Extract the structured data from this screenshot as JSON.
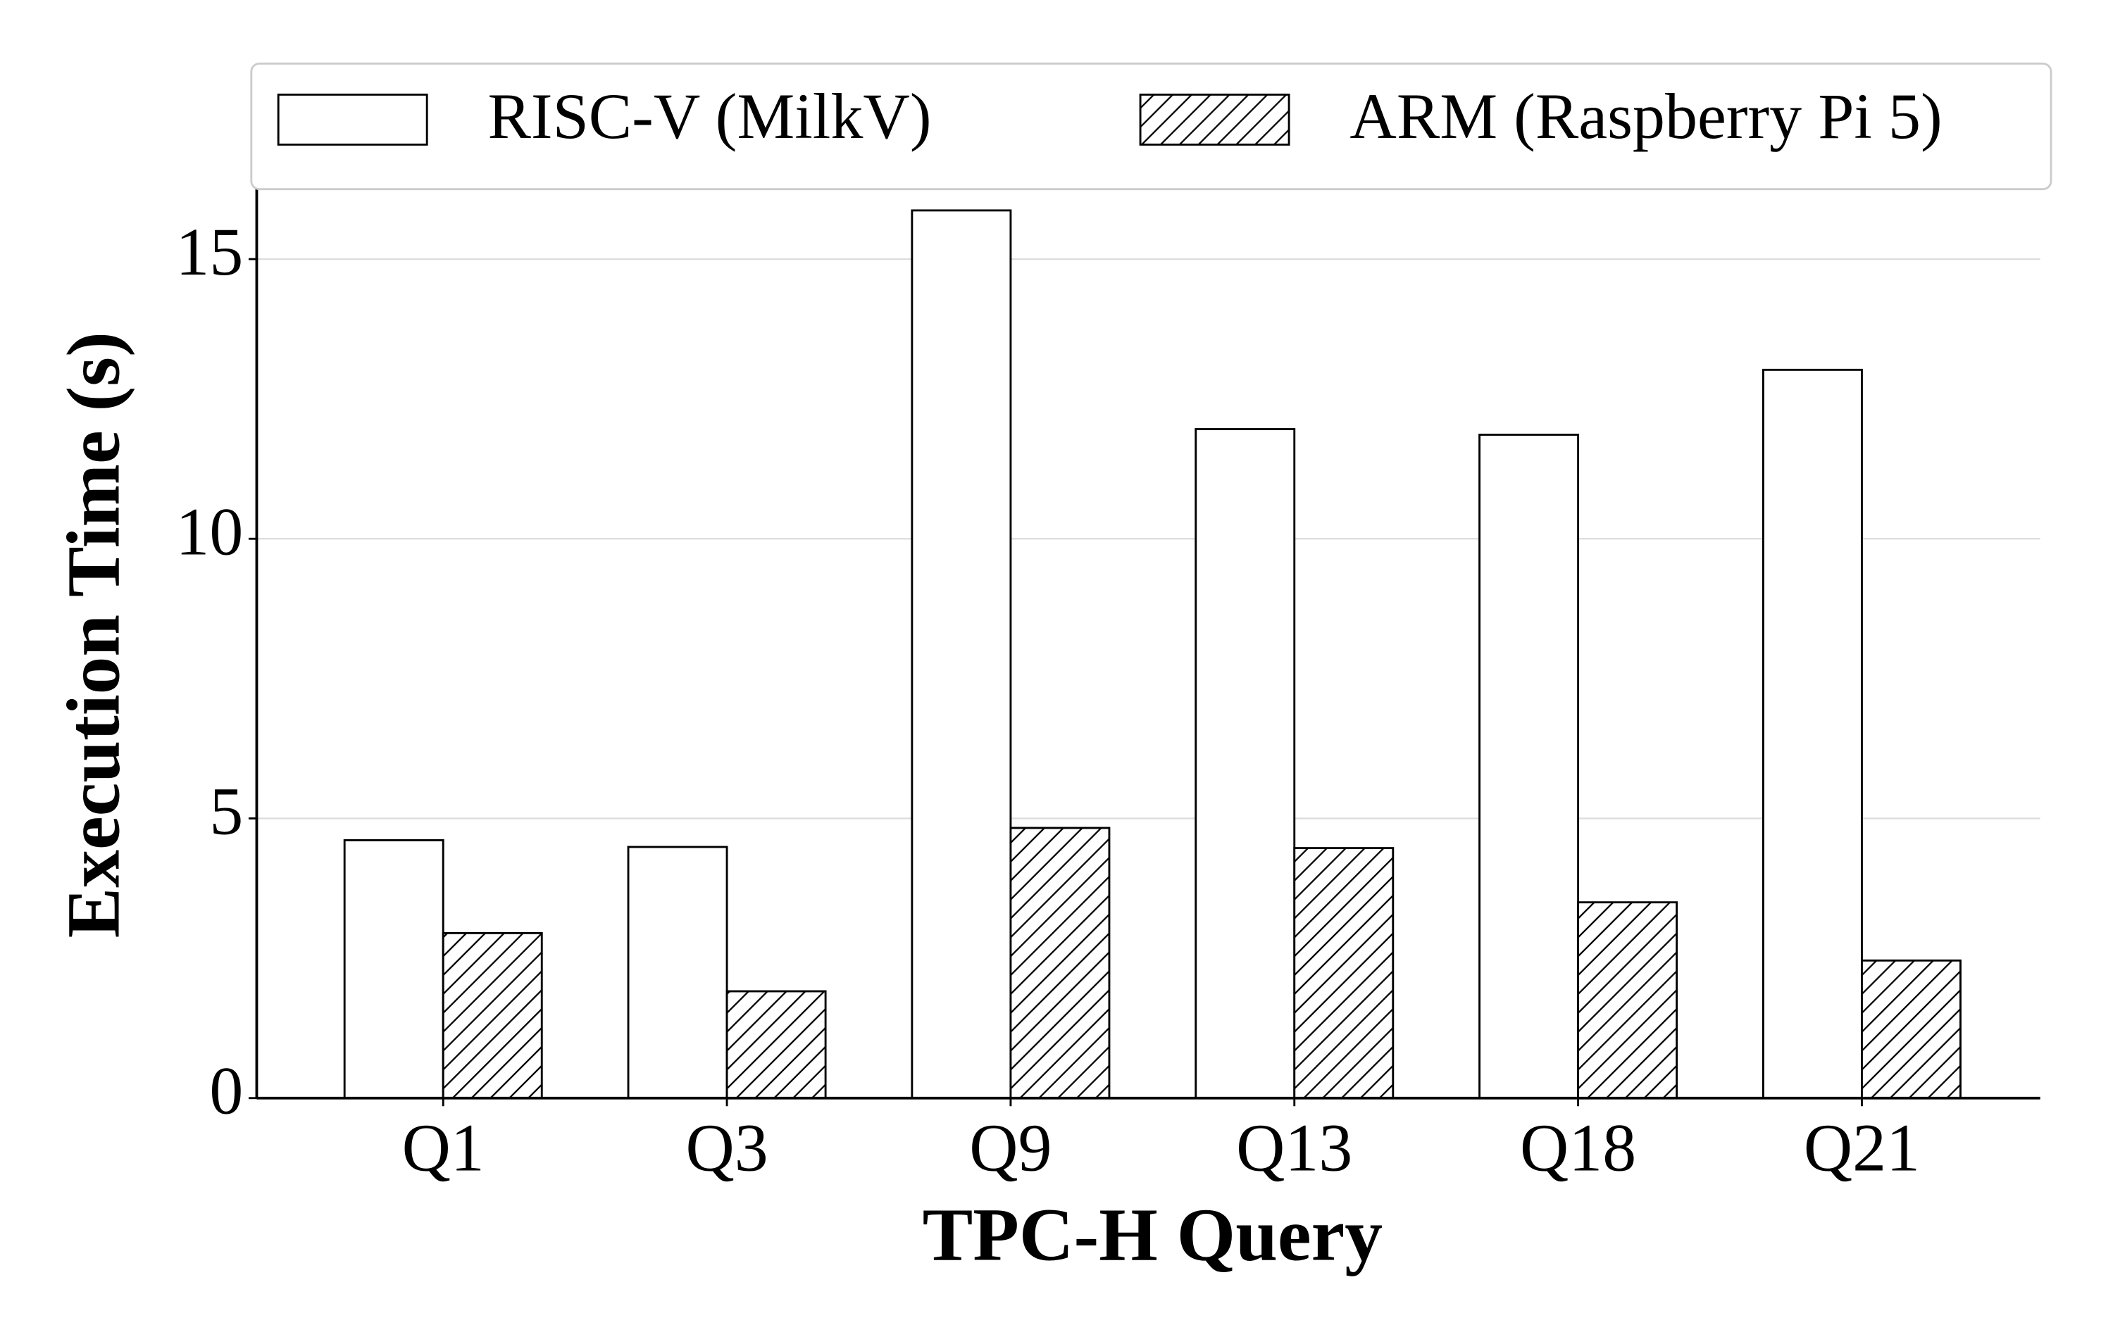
{
  "chart_data": {
    "type": "bar",
    "x_label": "TPC-H Query",
    "y_label": "Execution Time (s)",
    "categories": [
      "Q1",
      "Q3",
      "Q9",
      "Q13",
      "Q18",
      "Q21"
    ],
    "series": [
      {
        "name": "RISC-V (MilkV)",
        "color": "#ffffff",
        "hatch": false,
        "values": [
          4.61,
          4.49,
          15.87,
          11.96,
          11.86,
          13.02
        ]
      },
      {
        "name": "ARM (Raspberry Pi 5)",
        "color": "#ffffff",
        "hatch": true,
        "values": [
          2.95,
          1.91,
          4.83,
          4.47,
          3.5,
          2.46
        ]
      }
    ],
    "ylim": [
      0,
      16.25
    ],
    "yticks": [
      0,
      5,
      10,
      15
    ],
    "grid": true,
    "legend": "top"
  }
}
